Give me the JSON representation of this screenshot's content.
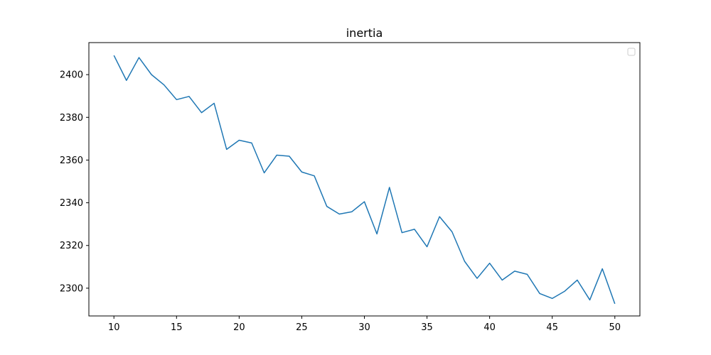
{
  "chart_data": {
    "type": "line",
    "title": "inertia",
    "xlabel": "",
    "ylabel": "",
    "xlim": [
      8,
      52
    ],
    "ylim": [
      2287,
      2415
    ],
    "xticks": [
      10,
      15,
      20,
      25,
      30,
      35,
      40,
      45,
      50
    ],
    "yticks": [
      2300,
      2320,
      2340,
      2360,
      2380,
      2400
    ],
    "grid": false,
    "legend": {
      "placement": "top-right",
      "entries": []
    },
    "series": [
      {
        "color": "#1f77b4",
        "x": [
          10,
          11,
          12,
          13,
          14,
          15,
          16,
          17,
          18,
          19,
          20,
          21,
          22,
          23,
          24,
          25,
          26,
          27,
          28,
          29,
          30,
          31,
          32,
          33,
          34,
          35,
          36,
          37,
          38,
          39,
          40,
          41,
          42,
          43,
          44,
          45,
          46,
          47,
          48,
          49,
          50
        ],
        "y": [
          2409,
          2397.3,
          2408,
          2400,
          2395.2,
          2388.3,
          2389.8,
          2382.2,
          2386.6,
          2365,
          2369.3,
          2368,
          2354,
          2362.3,
          2361.8,
          2354.4,
          2352.6,
          2338.3,
          2334.7,
          2335.8,
          2340.5,
          2325.4,
          2347.2,
          2326,
          2327.6,
          2319.4,
          2333.5,
          2326.4,
          2312.6,
          2304.6,
          2311.7,
          2303.8,
          2308,
          2306.5,
          2297.5,
          2295.2,
          2298.6,
          2303.8,
          2294.5,
          2309.1,
          2292.7
        ]
      }
    ]
  }
}
